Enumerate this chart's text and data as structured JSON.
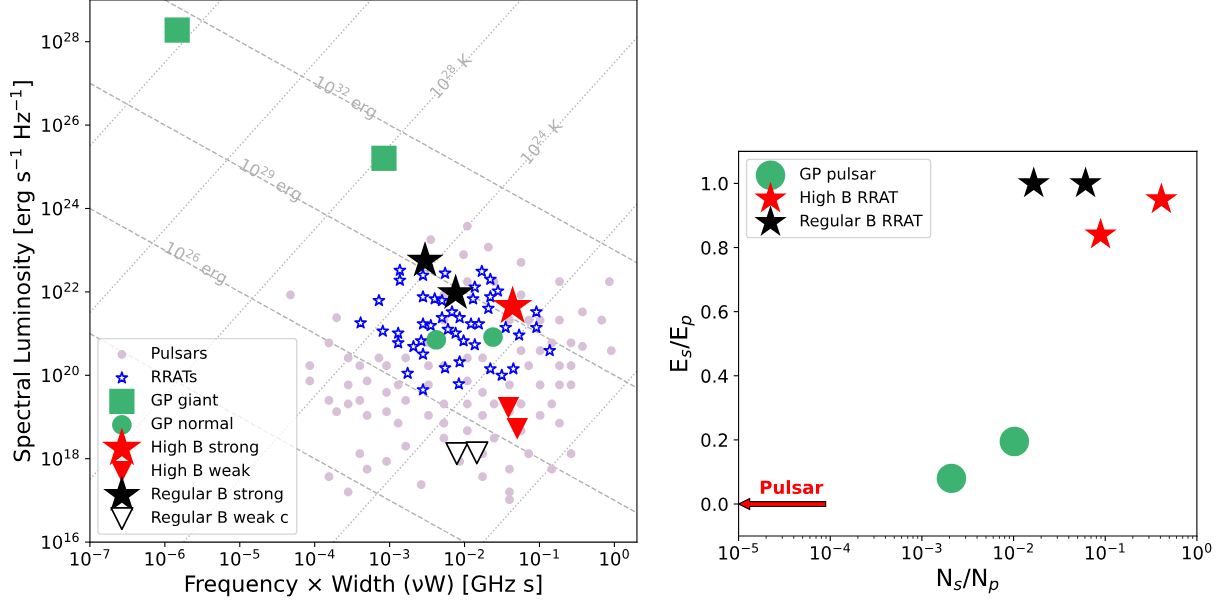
{
  "chart_data": [
    {
      "type": "scatter",
      "log": "xy",
      "legend": "lower left",
      "grid": false,
      "xlabel": "Frequency × Width (νW) [GHz s]",
      "ylabel": "Spectral Luminosity [erg s$^{−1}$ Hz$^{−1}$]",
      "xlim": [
        1e-07,
        2
      ],
      "ylim": [
        1e+16,
        1e+29
      ],
      "xticks": [
        {
          "value": 1e-07,
          "label": "10$^{−7}$"
        },
        {
          "value": 1e-06,
          "label": "10$^{−6}$"
        },
        {
          "value": 1e-05,
          "label": "10$^{−5}$"
        },
        {
          "value": 0.0001,
          "label": "10$^{−4}$"
        },
        {
          "value": 0.001,
          "label": "10$^{−3}$"
        },
        {
          "value": 0.01,
          "label": "10$^{−2}$"
        },
        {
          "value": 0.1,
          "label": "10$^{−1}$"
        },
        {
          "value": 1,
          "label": "10$^{0}$"
        }
      ],
      "yticks": [
        {
          "value": 1e+16,
          "label": "10$^{16}$"
        },
        {
          "value": 1e+18,
          "label": "10$^{18}$"
        },
        {
          "value": 1e+20,
          "label": "10$^{20}$"
        },
        {
          "value": 1e+22,
          "label": "10$^{22}$"
        },
        {
          "value": 1e+24,
          "label": "10$^{24}$"
        },
        {
          "value": 1e+26,
          "label": "10$^{26}$"
        },
        {
          "value": 1e+28,
          "label": "10$^{28}$"
        }
      ],
      "series": [
        {
          "type": "line",
          "color": "#b0b0b0",
          "line_style": "dashed",
          "x": [
            1e-06,
            2
          ],
          "values": [
            1e+29,
            5e+22
          ]
        },
        {
          "type": "line",
          "color": "#b0b0b0",
          "line_style": "dashed",
          "x": [
            1e-07,
            2
          ],
          "values": [
            1e+27,
            5e+19
          ]
        },
        {
          "type": "line",
          "color": "#b0b0b0",
          "line_style": "dashed",
          "x": [
            1e-07,
            2
          ],
          "values": [
            1e+24,
            5e+16
          ]
        },
        {
          "type": "line",
          "color": "#b0b0b0",
          "line_style": "dashed",
          "x": [
            1e-07,
            0.01
          ],
          "values": [
            1e+21,
            1e+16
          ]
        },
        {
          "type": "line",
          "color": "#b0b0b0",
          "line_style": "dotted",
          "x": [
            1e-07,
            5.6e-06
          ],
          "values": [
            3.2e+25,
            1e+29
          ]
        },
        {
          "type": "line",
          "color": "#b0b0b0",
          "line_style": "dotted",
          "x": [
            1e-07,
            0.00056
          ],
          "values": [
            3.2e+21,
            1e+29
          ]
        },
        {
          "type": "line",
          "color": "#b0b0b0",
          "line_style": "dotted",
          "x": [
            1e-07,
            0.056
          ],
          "values": [
            3.2e+17,
            1e+29
          ]
        },
        {
          "type": "line",
          "color": "#b0b0b0",
          "line_style": "dotted",
          "x": [
            1.78e-06,
            2
          ],
          "values": [
            1e+16,
            1.26e+28
          ]
        },
        {
          "type": "line",
          "color": "#b0b0b0",
          "line_style": "dotted",
          "x": [
            0.000178,
            2
          ],
          "values": [
            1e+16,
            1.26e+24
          ]
        },
        {
          "type": "line",
          "color": "#b0b0b0",
          "line_style": "dotted",
          "x": [
            0.0178,
            2
          ],
          "values": [
            1e+16,
            1.26e+20
          ]
        },
        {
          "name": "Pulsars",
          "color": "#d8c0d8",
          "marker": "circle",
          "x": [
            4.75e-05,
            8.6e-05,
            8.6e-05,
            0.000155,
            0.000196,
            0.00028,
            0.857,
            0.91,
            0.678,
            0.0109,
            0.00354,
            0.0208,
            0.0097,
            0.0568,
            0.0398,
            0.0398,
            0.185,
            0.264,
            0.146,
            0.0174,
            0.00264,
            0.0005,
            0.00091,
            0.0004,
            0.00164,
            0.0053,
            0.0568,
            0.102,
            0.375,
            0.375,
            0.185,
            0.000155,
            0.000196,
            0.00028,
            0.0004,
            0.0004,
            0.0005,
            0.00091,
            0.00091,
            0.0013,
            0.00164,
            0.00028,
            0.0005,
            0.00091,
            0.000155,
            0.00028,
            0.00072,
            0.0013,
            0.0053,
            0.0109,
            0.0248,
            0.0568,
            0.102,
            0.185,
            0.264,
            0.146,
            0.0718,
            0.185,
            0.264,
            0.102,
            0.0568,
            0.146,
            0.0248,
            0.0109,
            0.0053,
            0.0033,
            0.0053,
            0.0109,
            0.0174,
            0.0398,
            0.0568,
            0.0398,
            0.0174,
            0.0109,
            0.0033,
            0.0053,
            0.0718,
            0.102,
            0.264,
            0.185,
            0.0398,
            0.0174,
            0.0053,
            0.0109,
            0.0248,
            0.0033,
            0.00164,
            0.0033,
            0.0174,
            0.0398,
            0.0718,
            0.0086
          ],
          "values": [
            8.5e+21,
            1.7e+20,
            7.3e+19,
            3.7e+17,
            2.4e+21,
            1.59e+17,
            1.77e+22,
            3.9e+20,
            2.1e+21,
            3.8e+23,
            1.8e+23,
            1.18e+23,
            7.8e+22,
            5.1e+22,
            1.04e+17,
            1.59e+17,
            7.1e+18,
            1.32e+18,
            5.6e+17,
            3.7e+17,
            2.4e+17,
            5.6e+17,
            8.6e+17,
            1.32e+18,
            2e+18,
            3.1e+18,
            4.7e+18,
            1.09e+19,
            4.9e+20,
            3.3e+21,
            1.77e+22,
            2.5e+19,
            1.34e+19,
            5.9e+19,
            1.7e+20,
            2.5e+19,
            1.09e+19,
            3.9e+19,
            1.34e+19,
            7.1e+18,
            2.5e+19,
            2.05e+19,
            7.3e+19,
            1.7e+20,
            6e+20,
            2.6e+20,
            2.6e+20,
            5.9e+19,
            8.5e+21,
            1.77e+22,
            1.77e+22,
            8.5e+21,
            2.1e+21,
            2.1e+21,
            6e+20,
            6e+20,
            1.7e+20,
            1.7e+20,
            5.9e+19,
            5.9e+19,
            2.05e+19,
            2.05e+19,
            2.05e+19,
            2.05e+19,
            2.05e+19,
            5.9e+19,
            1.7e+20,
            7.3e+19,
            3.9e+19,
            5.9e+19,
            3.9e+20,
            2.1e+21,
            2.6e+20,
            2.6e+20,
            6e+20,
            2.1e+21,
            2.1e+21,
            3.9e+20,
            1.7e+20,
            5.9e+19,
            1.34e+19,
            1.09e+19,
            7.1e+18,
            4.7e+18,
            3.1e+18,
            1.09e+19,
            2.6e+20,
            1.7e+20,
            1.32e+18,
            5.6e+17,
            1.32e+18,
            8.6e+17
          ]
        },
        {
          "name": "RRATs",
          "color": "#0000ff",
          "marker": "star_open",
          "x": [
            0.00137,
            0.00137,
            0.00279,
            0.0055,
            0.017,
            0.0221,
            0.00072,
            0.00279,
            0.004,
            0.005,
            0.0137,
            0.013,
            0.0221,
            0.0279,
            0.0208,
            0.091,
            0.00041,
            0.00081,
            0.0013,
            0.0013,
            0.00208,
            0.00279,
            0.00279,
            0.00354,
            0.005,
            0.0068,
            0.0086,
            0.0122,
            0.0076,
            0.0097,
            0.0137,
            0.0354,
            0.0535,
            0.091,
            0.137,
            0.00174,
            0.0055,
            0.0086,
            0.0221,
            0.0314,
            0.0448,
            0.00279,
            0.0084,
            0.00264,
            0.006,
            0.0155
          ],
          "values": [
            3.3e+22,
            1.9e+22,
            2.5e+22,
            2.8e+22,
            3.1e+22,
            2e+22,
            6.2e+21,
            7.6e+21,
            6.8e+21,
            6.2e+21,
            1.3e+22,
            6.8e+21,
            7.6e+21,
            1.05e+22,
            4e+21,
            3.3e+21,
            1.8e+21,
            1.14e+21,
            1.02e+21,
            6e+20,
            4.9e+20,
            1.7e+21,
            3.2e+20,
            1.56e+21,
            2.4e+21,
            3.3e+21,
            2.4e+21,
            1.7e+21,
            1.02e+21,
            6.7e+20,
            5.4e+20,
            1.4e+21,
            9.2e+20,
            1.4e+21,
            3.9e+20,
            1.11e+20,
            1.5e+20,
            2.1e+20,
            1.43e+20,
            1e+20,
            1.43e+20,
            4.5e+19,
            6.2e+19,
            6.7e+20,
            1.26e+21,
            1.7e+21
          ]
        },
        {
          "name": "GP giant",
          "color": "#3cb371",
          "marker": "square",
          "x": [
            1.46e-06,
            0.00084
          ],
          "values": [
            1.9e+28,
            1.6e+25
          ]
        },
        {
          "name": "GP normal",
          "color": "#3cb371",
          "marker": "circle",
          "x": [
            0.0042,
            0.024
          ],
          "values": [
            7.1e+20,
            8.3e+20
          ]
        },
        {
          "name": "High B strong",
          "color": "#ff0000",
          "marker": "star",
          "x": [
            0.0438
          ],
          "values": [
            4.5e+21
          ]
        },
        {
          "name": "High B weak",
          "color": "#ff0000",
          "marker": "triangle_down",
          "x": [
            0.0385,
            0.0505
          ],
          "values": [
            1.66e+19,
            5.2e+18
          ]
        },
        {
          "name": "Regular B strong",
          "color": "#000000",
          "marker": "star",
          "x": [
            0.00297,
            0.0076
          ],
          "values": [
            5.6e+22,
            9.3e+21
          ]
        },
        {
          "name": "Regular B weak c",
          "color": "#000000",
          "marker": "triangle_down_open",
          "x": [
            0.0079,
            0.0146
          ],
          "values": [
            1.32e+18,
            1.38e+18
          ]
        }
      ],
      "annotations": [
        {
          "text": "10$^{32}$ erg",
          "x": 0.00026,
          "y": 4.7e+26
        },
        {
          "text": "10$^{29}$ erg",
          "x": 2.6e-05,
          "y": 4.9e+24
        },
        {
          "text": "10$^{26}$ erg",
          "x": 2.6e-06,
          "y": 5e+22
        },
        {
          "text": "10$^{28}$ K",
          "x": 0.0067,
          "y": 1.4e+27
        },
        {
          "text": "10$^{24}$ K",
          "x": 0.109,
          "y": 3.7e+25
        }
      ]
    },
    {
      "type": "scatter",
      "log": "x",
      "legend": "upper left",
      "grid": false,
      "xlabel": "N$_{s}$/N$_{p}$",
      "ylabel": "E$_{s}$/E$_{p}$",
      "xlim": [
        1e-05,
        1
      ],
      "ylim": [
        -0.1,
        1.1
      ],
      "xticks": [
        {
          "value": 1e-05,
          "label": "10$^{−5}$"
        },
        {
          "value": 0.0001,
          "label": "10$^{−4}$"
        },
        {
          "value": 0.001,
          "label": "10$^{−3}$"
        },
        {
          "value": 0.01,
          "label": "10$^{−2}$"
        },
        {
          "value": 0.1,
          "label": "10$^{−1}$"
        },
        {
          "value": 1,
          "label": "10$^{0}$"
        }
      ],
      "yticks": [
        {
          "value": 0,
          "label": "0.0"
        },
        {
          "value": 0.2,
          "label": "0.2"
        },
        {
          "value": 0.4,
          "label": "0.4"
        },
        {
          "value": 0.6,
          "label": "0.6"
        },
        {
          "value": 0.8,
          "label": "0.8"
        },
        {
          "value": 1.0,
          "label": "1.0"
        }
      ],
      "series": [
        {
          "name": "GP pulsar",
          "color": "#3cb371",
          "marker": "circle",
          "x": [
            0.0021,
            0.0102
          ],
          "values": [
            0.08,
            0.195
          ]
        },
        {
          "name": "High B RRAT",
          "color": "#ff0000",
          "marker": "star",
          "x": [
            0.089,
            0.41
          ],
          "values": [
            0.84,
            0.95
          ]
        },
        {
          "name": "Regular B RRAT",
          "color": "#000000",
          "marker": "star",
          "x": [
            0.0166,
            0.061
          ],
          "values": [
            1.0,
            1.0
          ]
        }
      ],
      "annotations": [
        "Pulsar"
      ]
    }
  ]
}
